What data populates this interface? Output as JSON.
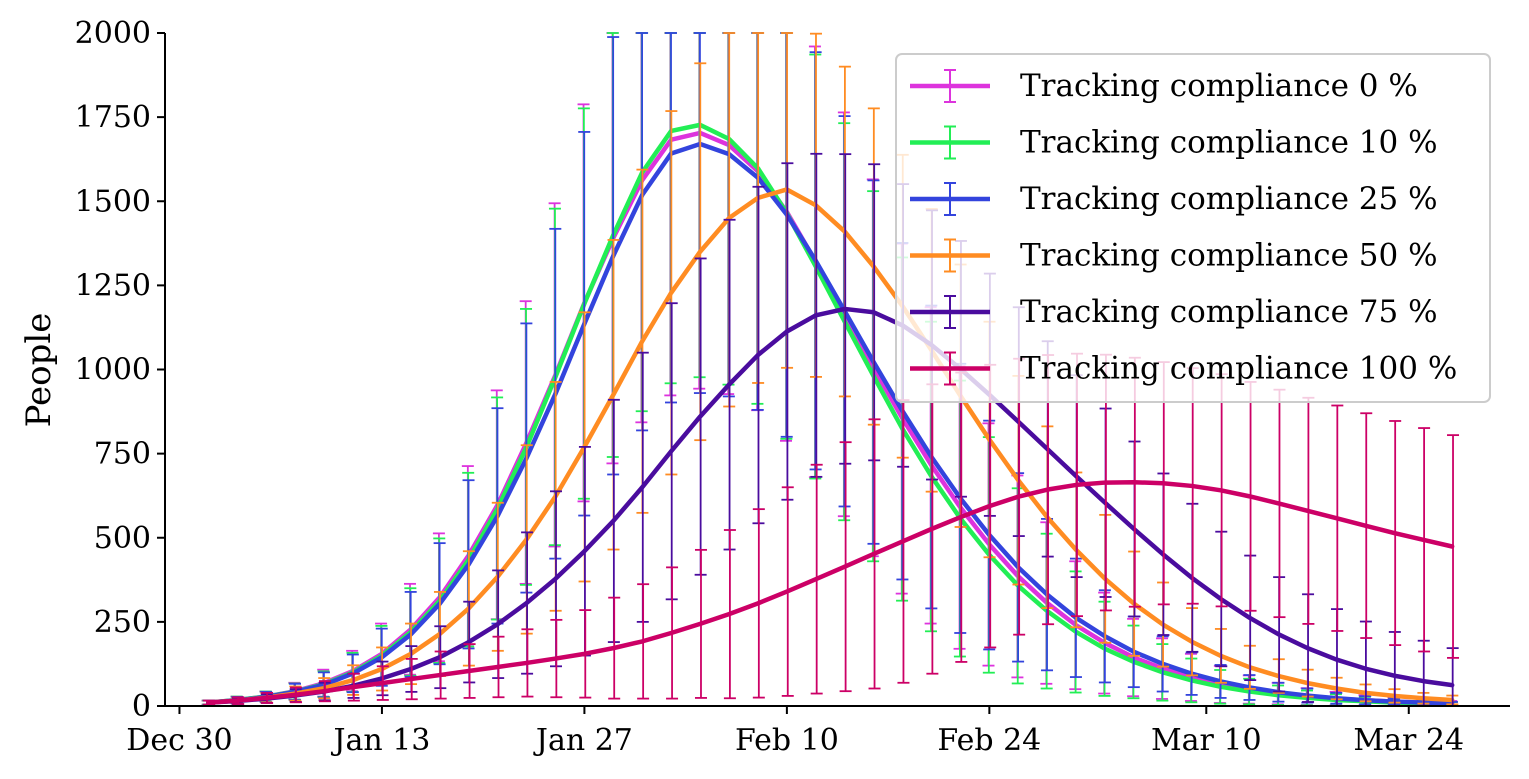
{
  "chart_data": {
    "type": "line",
    "ylabel": "People",
    "xlabel": "",
    "ylim": [
      0,
      2000
    ],
    "y_ticks": [
      0,
      250,
      500,
      750,
      1000,
      1250,
      1500,
      1750,
      2000
    ],
    "x_ticks": [
      "Dec 30",
      "Jan 13",
      "Jan 27",
      "Feb 10",
      "Feb 24",
      "Mar 10",
      "Mar 24"
    ],
    "x_range": [
      "2019-12-29",
      "2020-03-31"
    ],
    "legend_position": "top-right",
    "grid": false,
    "error_bars": true,
    "x": [
      "2020-01-01",
      "2020-01-03",
      "2020-01-05",
      "2020-01-07",
      "2020-01-09",
      "2020-01-11",
      "2020-01-13",
      "2020-01-15",
      "2020-01-17",
      "2020-01-19",
      "2020-01-21",
      "2020-01-23",
      "2020-01-25",
      "2020-01-27",
      "2020-01-29",
      "2020-01-31",
      "2020-02-02",
      "2020-02-04",
      "2020-02-06",
      "2020-02-08",
      "2020-02-10",
      "2020-02-12",
      "2020-02-14",
      "2020-02-16",
      "2020-02-18",
      "2020-02-20",
      "2020-02-22",
      "2020-02-24",
      "2020-02-26",
      "2020-02-28",
      "2020-03-01",
      "2020-03-03",
      "2020-03-05",
      "2020-03-07",
      "2020-03-09",
      "2020-03-11",
      "2020-03-13",
      "2020-03-15",
      "2020-03-17",
      "2020-03-19",
      "2020-03-21",
      "2020-03-23",
      "2020-03-25",
      "2020-03-27"
    ],
    "series": [
      {
        "name": "Tracking compliance 0 %",
        "color": "#dd33dd",
        "values": [
          10,
          18,
          28,
          44,
          68,
          104,
          155,
          228,
          323,
          448,
          598,
          783,
          984,
          1198,
          1391,
          1563,
          1683,
          1703,
          1667,
          1589,
          1468,
          1320,
          1164,
          1005,
          854,
          715,
          590,
          480,
          385,
          306,
          240,
          187,
          144,
          111,
          85,
          64,
          49,
          37,
          28,
          22,
          17,
          13,
          10,
          8
        ],
        "error": [
          6,
          10,
          15,
          25,
          40,
          60,
          90,
          135,
          190,
          265,
          340,
          420,
          510,
          590,
          670,
          720,
          760,
          760,
          740,
          710,
          680,
          640,
          600,
          560,
          520,
          470,
          420,
          360,
          300,
          240,
          190,
          150,
          115,
          90,
          70,
          55,
          42,
          32,
          25,
          20,
          15,
          12,
          9,
          7
        ]
      },
      {
        "name": "Tracking compliance 10 %",
        "color": "#22ee55",
        "values": [
          10,
          18,
          28,
          43,
          65,
          100,
          150,
          220,
          313,
          435,
          587,
          770,
          978,
          1196,
          1400,
          1586,
          1709,
          1727,
          1685,
          1598,
          1464,
          1306,
          1142,
          980,
          823,
          682,
          557,
          449,
          357,
          282,
          220,
          170,
          131,
          100,
          76,
          57,
          43,
          32,
          24,
          18,
          14,
          10,
          8,
          6
        ],
        "error": [
          6,
          10,
          15,
          24,
          38,
          58,
          88,
          130,
          185,
          258,
          330,
          410,
          500,
          580,
          660,
          710,
          750,
          750,
          730,
          700,
          670,
          630,
          590,
          550,
          510,
          460,
          410,
          350,
          290,
          230,
          180,
          140,
          108,
          84,
          65,
          50,
          38,
          29,
          22,
          17,
          13,
          10,
          8,
          6
        ]
      },
      {
        "name": "Tracking compliance 25 %",
        "color": "#3344dd",
        "values": [
          10,
          17,
          27,
          42,
          63,
          97,
          145,
          213,
          304,
          421,
          565,
          737,
          928,
          1136,
          1338,
          1519,
          1642,
          1670,
          1640,
          1570,
          1460,
          1323,
          1173,
          1022,
          876,
          740,
          617,
          508,
          412,
          331,
          262,
          207,
          161,
          125,
          96,
          73,
          55,
          41,
          31,
          23,
          17,
          13,
          10,
          7
        ],
        "error": [
          6,
          10,
          15,
          24,
          37,
          56,
          85,
          126,
          180,
          250,
          320,
          400,
          490,
          570,
          650,
          700,
          740,
          740,
          720,
          690,
          660,
          620,
          580,
          540,
          500,
          450,
          400,
          340,
          280,
          225,
          176,
          137,
          105,
          82,
          63,
          49,
          37,
          28,
          21,
          16,
          12,
          9,
          7,
          5
        ]
      },
      {
        "name": "Tracking compliance 50 %",
        "color": "#ff8c22",
        "values": [
          10,
          16,
          25,
          37,
          53,
          77,
          110,
          155,
          214,
          290,
          384,
          495,
          623,
          770,
          925,
          1084,
          1228,
          1350,
          1450,
          1510,
          1535,
          1488,
          1410,
          1306,
          1188,
          1057,
          922,
          792,
          671,
          561,
          464,
          378,
          304,
          242,
          191,
          149,
          115,
          89,
          68,
          52,
          39,
          30,
          23,
          18
        ],
        "error": [
          6,
          9,
          14,
          21,
          30,
          44,
          64,
          90,
          125,
          170,
          220,
          280,
          340,
          400,
          460,
          510,
          540,
          560,
          560,
          550,
          530,
          510,
          490,
          470,
          450,
          420,
          390,
          350,
          310,
          270,
          230,
          190,
          155,
          125,
          100,
          80,
          64,
          50,
          40,
          32,
          25,
          20,
          16,
          13
        ]
      },
      {
        "name": "Tracking compliance 75 %",
        "color": "#4a0c9e",
        "values": [
          10,
          15,
          22,
          31,
          43,
          60,
          82,
          110,
          145,
          190,
          243,
          306,
          378,
          460,
          550,
          650,
          757,
          860,
          955,
          1043,
          1113,
          1161,
          1180,
          1170,
          1131,
          1073,
          1002,
          925,
          845,
          764,
          683,
          604,
          526,
          451,
          381,
          318,
          262,
          213,
          172,
          138,
          111,
          90,
          74,
          62
        ],
        "error": [
          6,
          9,
          13,
          19,
          26,
          36,
          50,
          68,
          92,
          120,
          160,
          210,
          260,
          310,
          360,
          400,
          440,
          470,
          490,
          500,
          500,
          480,
          460,
          440,
          420,
          400,
          380,
          360,
          340,
          320,
          300,
          280,
          260,
          240,
          220,
          200,
          185,
          170,
          160,
          150,
          140,
          130,
          120,
          110
        ]
      },
      {
        "name": "Tracking compliance 100 %",
        "color": "#cc0066",
        "values": [
          10,
          16,
          24,
          33,
          44,
          56,
          68,
          80,
          92,
          104,
          116,
          128,
          141,
          155,
          172,
          192,
          217,
          244,
          273,
          305,
          340,
          377,
          414,
          452,
          489,
          526,
          561,
          594,
          622,
          643,
          657,
          664,
          665,
          662,
          654,
          641,
          623,
          602,
          580,
          558,
          536,
          514,
          494,
          474
        ],
        "error": [
          6,
          10,
          15,
          22,
          30,
          40,
          50,
          60,
          70,
          80,
          90,
          100,
          115,
          130,
          150,
          170,
          195,
          220,
          250,
          280,
          310,
          340,
          370,
          400,
          420,
          430,
          430,
          420,
          410,
          400,
          390,
          380,
          370,
          360,
          350,
          345,
          340,
          338,
          336,
          335,
          334,
          333,
          332,
          331
        ]
      }
    ]
  }
}
